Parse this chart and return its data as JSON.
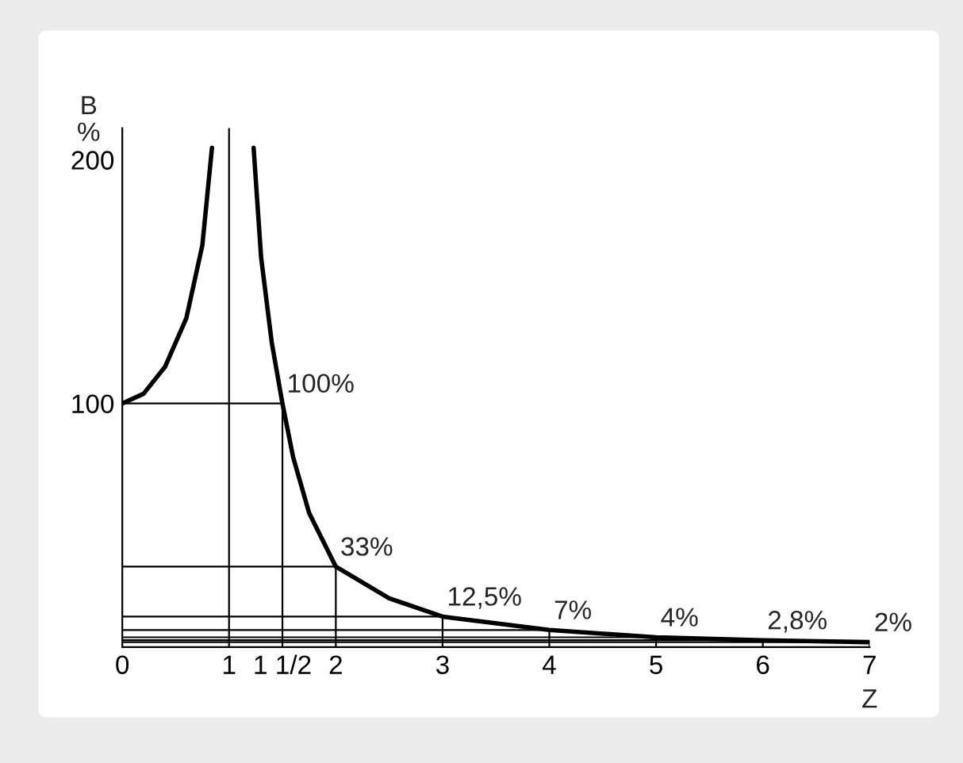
{
  "chart_data": {
    "type": "line",
    "xlabel": "Z",
    "ylabel": "B\n%",
    "xlim": [
      0,
      7
    ],
    "ylim": [
      0,
      213
    ],
    "xticks": [
      0,
      1,
      {
        "value": 1.5,
        "label": "1 1/2"
      },
      2,
      3,
      4,
      5,
      6,
      7
    ],
    "yticks": [
      100,
      200
    ],
    "series": [
      {
        "color": "#000000",
        "x": [
          0,
          0.2,
          0.4,
          0.6,
          0.75,
          0.84
        ],
        "values": [
          100,
          104,
          115,
          135,
          165,
          205
        ]
      },
      {
        "color": "#000000",
        "x": [
          1.23,
          1.3,
          1.4,
          1.5,
          1.6,
          1.75,
          2,
          2.5,
          3,
          4,
          5,
          6,
          7
        ],
        "values": [
          205,
          160,
          125,
          100,
          78,
          55,
          33,
          20,
          12.5,
          7,
          4,
          2.8,
          2
        ]
      }
    ],
    "ref_lines": [
      {
        "axis": "x",
        "value": 1
      }
    ],
    "annotations": [
      {
        "text": "100%",
        "x": 1.5,
        "y": 100
      },
      {
        "text": "33%",
        "x": 2,
        "y": 33
      },
      {
        "text": "12,5%",
        "x": 3,
        "y": 12.5
      },
      {
        "text": "7%",
        "x": 4,
        "y": 7
      },
      {
        "text": "4%",
        "x": 5,
        "y": 4
      },
      {
        "text": "2,8%",
        "x": 6,
        "y": 2.8
      },
      {
        "text": "2%",
        "x": 7,
        "y": 2
      }
    ],
    "grid": false,
    "legend": false,
    "marker": "none",
    "line_style": "solid"
  }
}
